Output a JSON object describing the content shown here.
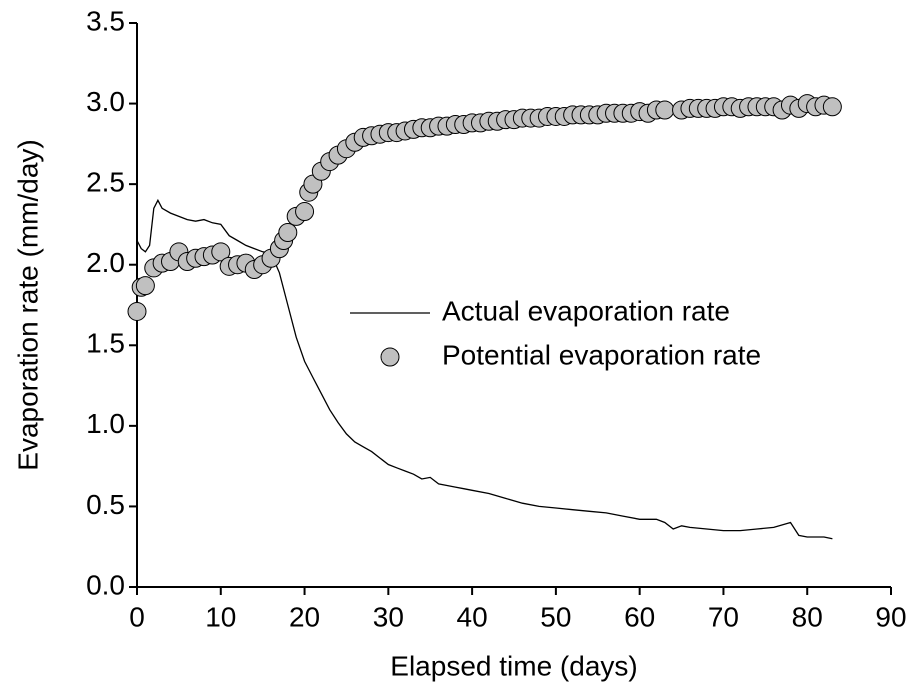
{
  "chart_data": {
    "type": "line",
    "xlabel": "Elapsed time (days)",
    "ylabel": "Evaporation rate (mm/day)",
    "xlim": [
      0,
      90
    ],
    "ylim": [
      0,
      3.5
    ],
    "xticks": [
      0,
      10,
      20,
      30,
      40,
      50,
      60,
      70,
      80,
      90
    ],
    "yticks": [
      {
        "value": 0,
        "label": "0.0"
      },
      0.5,
      {
        "value": 1,
        "label": "1.0"
      },
      1.5,
      {
        "value": 2,
        "label": "2.0"
      },
      2.5,
      {
        "value": 3,
        "label": "3.0"
      },
      3.5
    ],
    "legend": "right",
    "series": [
      {
        "name": "Actual evaporation rate",
        "type": "line",
        "color": "#000000",
        "x": [
          0,
          0.5,
          1,
          1.5,
          2,
          2.5,
          3,
          4,
          5,
          6,
          7,
          8,
          9,
          10,
          11,
          12,
          13,
          14,
          15,
          16,
          17,
          18,
          19,
          20,
          21,
          22,
          23,
          24,
          25,
          26,
          27,
          28,
          29,
          30,
          31,
          32,
          33,
          34,
          35,
          36,
          37,
          38,
          39,
          40,
          42,
          44,
          46,
          48,
          50,
          52,
          54,
          56,
          58,
          60,
          62,
          63,
          64,
          65,
          66,
          68,
          70,
          72,
          74,
          76,
          78,
          79,
          80,
          81,
          82,
          83
        ],
        "values": [
          2.15,
          2.1,
          2.08,
          2.12,
          2.35,
          2.4,
          2.35,
          2.32,
          2.3,
          2.28,
          2.27,
          2.28,
          2.26,
          2.25,
          2.18,
          2.15,
          2.12,
          2.1,
          2.08,
          2.07,
          1.95,
          1.75,
          1.55,
          1.4,
          1.3,
          1.2,
          1.1,
          1.02,
          0.95,
          0.9,
          0.87,
          0.84,
          0.8,
          0.76,
          0.74,
          0.72,
          0.7,
          0.67,
          0.68,
          0.64,
          0.63,
          0.62,
          0.61,
          0.6,
          0.58,
          0.55,
          0.52,
          0.5,
          0.49,
          0.48,
          0.47,
          0.46,
          0.44,
          0.42,
          0.42,
          0.4,
          0.36,
          0.38,
          0.37,
          0.36,
          0.35,
          0.35,
          0.36,
          0.37,
          0.4,
          0.32,
          0.31,
          0.31,
          0.31,
          0.3
        ]
      },
      {
        "name": "Potential evaporation rate",
        "type": "scatter",
        "color": "#c0c0c0",
        "x": [
          0,
          0.5,
          1,
          2,
          3,
          4,
          5,
          6,
          7,
          8,
          9,
          10,
          11,
          12,
          13,
          14,
          15,
          16,
          17,
          17.5,
          18,
          19,
          20,
          20.5,
          21,
          22,
          23,
          24,
          25,
          26,
          27,
          28,
          29,
          30,
          31,
          32,
          33,
          34,
          35,
          36,
          37,
          38,
          39,
          40,
          41,
          42,
          43,
          44,
          45,
          46,
          47,
          48,
          49,
          50,
          51,
          52,
          53,
          54,
          55,
          56,
          57,
          58,
          59,
          60,
          61,
          62,
          63,
          65,
          66,
          67,
          68,
          69,
          70,
          71,
          72,
          73,
          74,
          75,
          76,
          77,
          78,
          79,
          80,
          81,
          82,
          83
        ],
        "values": [
          1.71,
          1.86,
          1.87,
          1.98,
          2.01,
          2.02,
          2.08,
          2.02,
          2.04,
          2.05,
          2.06,
          2.08,
          1.99,
          2.0,
          2.01,
          1.97,
          2.0,
          2.04,
          2.1,
          2.15,
          2.2,
          2.3,
          2.33,
          2.45,
          2.5,
          2.58,
          2.64,
          2.68,
          2.72,
          2.76,
          2.79,
          2.8,
          2.81,
          2.82,
          2.82,
          2.83,
          2.84,
          2.85,
          2.85,
          2.86,
          2.86,
          2.87,
          2.87,
          2.88,
          2.88,
          2.89,
          2.89,
          2.9,
          2.9,
          2.91,
          2.91,
          2.91,
          2.92,
          2.92,
          2.92,
          2.93,
          2.93,
          2.93,
          2.93,
          2.94,
          2.94,
          2.94,
          2.94,
          2.95,
          2.94,
          2.96,
          2.96,
          2.96,
          2.97,
          2.97,
          2.97,
          2.97,
          2.98,
          2.98,
          2.97,
          2.98,
          2.98,
          2.98,
          2.98,
          2.96,
          2.99,
          2.97,
          3.0,
          2.98,
          2.99,
          2.98
        ]
      }
    ]
  }
}
